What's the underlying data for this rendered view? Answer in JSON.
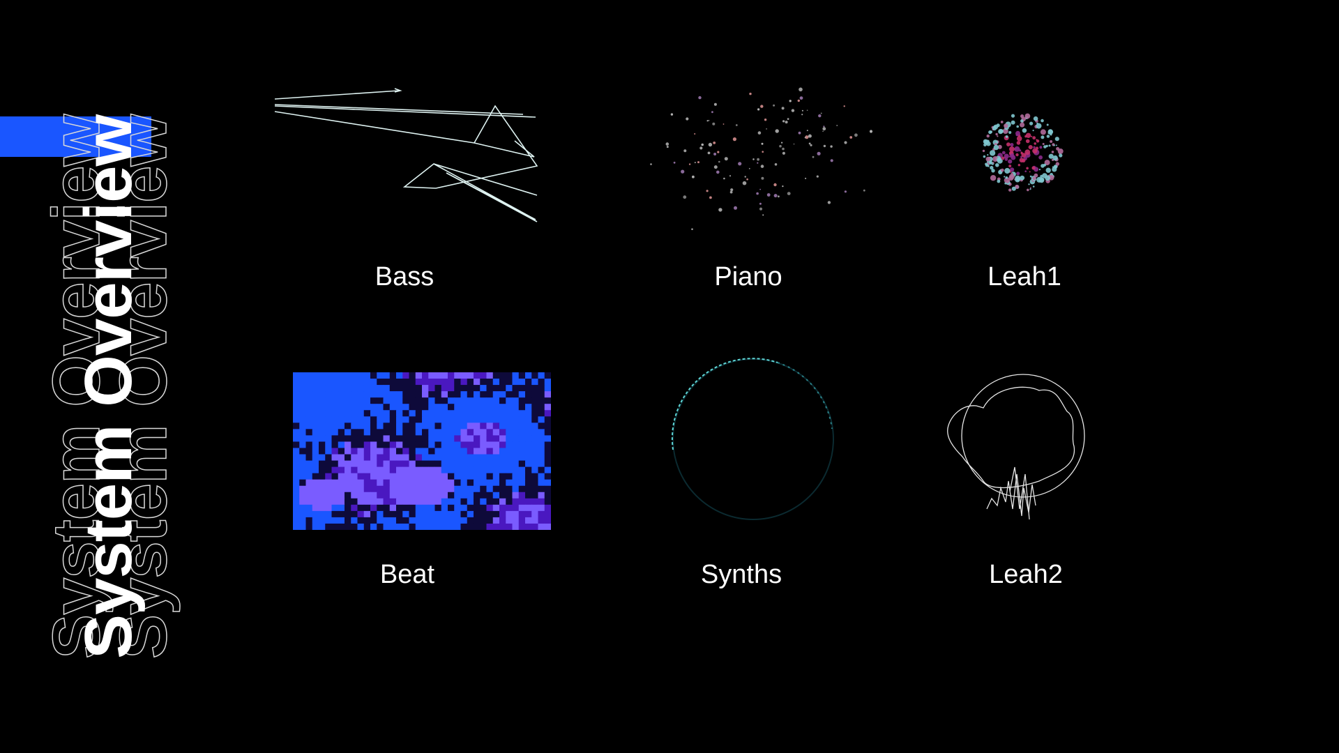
{
  "sidebar": {
    "title": "System Overview",
    "accent_color": "#1a56ff"
  },
  "tiles": [
    {
      "id": "bass",
      "label": "Bass"
    },
    {
      "id": "piano",
      "label": "Piano"
    },
    {
      "id": "leah1",
      "label": "Leah1"
    },
    {
      "id": "beat",
      "label": "Beat"
    },
    {
      "id": "synths",
      "label": "Synths"
    },
    {
      "id": "leah2",
      "label": "Leah2"
    }
  ],
  "colors": {
    "beat_palette": [
      "#1a56ff",
      "#0e0a3a",
      "#7a5cff",
      "#4a18c0"
    ]
  }
}
